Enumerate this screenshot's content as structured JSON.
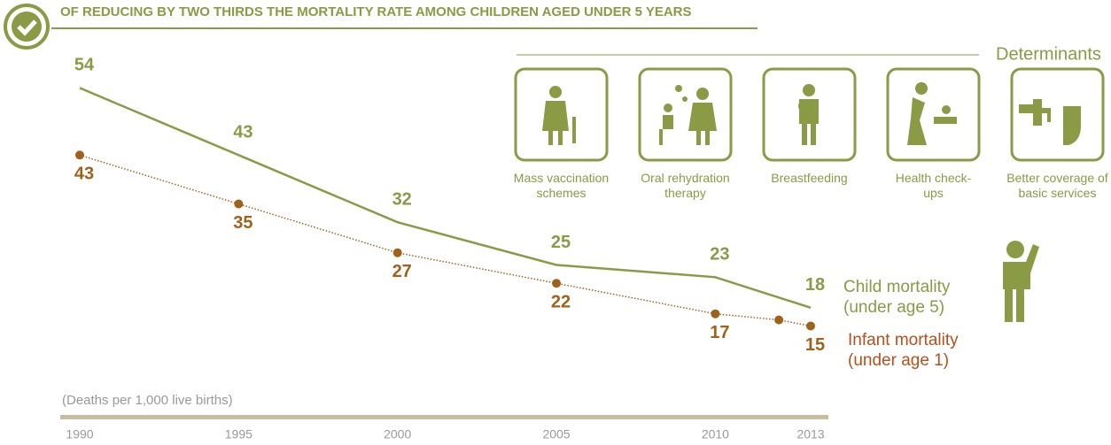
{
  "chart_data": {
    "type": "line",
    "title": "OF REDUCING BY TWO THIRDS THE MORTALITY RATE AMONG CHILDREN AGED UNDER 5 YEARS",
    "unit_label": "(Deaths per 1,000 live births)",
    "xlim": [
      1990,
      2013
    ],
    "xticks": [
      1990,
      1995,
      2000,
      2005,
      2010,
      2013
    ],
    "ylim": [
      0,
      60
    ],
    "series": [
      {
        "name": "Child mortality (under age 5)",
        "color": "#8a9a45",
        "x": [
          1990,
          1995,
          2000,
          2005,
          2010,
          2013
        ],
        "values": [
          54,
          43,
          32,
          25,
          23,
          18
        ]
      },
      {
        "name": "Infant mortality (under age 1)",
        "color": "#a0621a",
        "x": [
          1990,
          1995,
          2000,
          2005,
          2010,
          2012,
          2013
        ],
        "values": [
          43,
          35,
          27,
          22,
          17,
          16,
          15
        ],
        "value_labels": [
          "43",
          "35",
          "27",
          "22",
          "17",
          null,
          "15"
        ]
      }
    ]
  },
  "determinants": {
    "title": "Determinants",
    "items": [
      "Mass vaccination schemes",
      "Oral rehydration therapy",
      "Breastfeeding",
      "Health check-ups",
      "Better coverage of basic services"
    ]
  }
}
